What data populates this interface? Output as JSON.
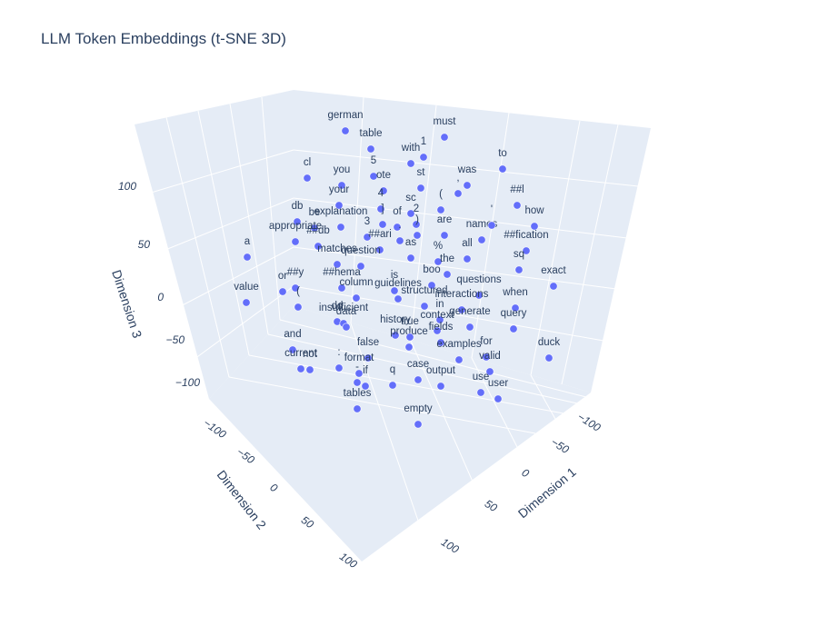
{
  "chart_data": {
    "type": "scatter3d",
    "title": "LLM Token Embeddings (t-SNE 3D)",
    "xlabel": "Dimension 1",
    "ylabel": "Dimension 2",
    "zlabel": "Dimension 3",
    "x_ticks": [
      "−100",
      "−50",
      "0",
      "50",
      "100"
    ],
    "y_ticks": [
      "−100",
      "−50",
      "0",
      "50",
      "100"
    ],
    "z_ticks": [
      "−100",
      "−50",
      "0",
      "50",
      "100"
    ],
    "marker_color": "#636efa",
    "background_color": "#e5ecf6",
    "points": [
      {
        "label": "german"
      },
      {
        "label": "table"
      },
      {
        "label": "must"
      },
      {
        "label": "1"
      },
      {
        "label": "with"
      },
      {
        "label": "5"
      },
      {
        "label": "cl"
      },
      {
        "label": "you"
      },
      {
        "label": "ote"
      },
      {
        "label": "st"
      },
      {
        "label": "was"
      },
      {
        "label": ","
      },
      {
        "label": "to"
      },
      {
        "label": "your"
      },
      {
        "label": "4"
      },
      {
        "label": "sc"
      },
      {
        "label": "2"
      },
      {
        "label": "("
      },
      {
        "label": "##l"
      },
      {
        "label": "db"
      },
      {
        "label": "be"
      },
      {
        "label": "explanation"
      },
      {
        "label": "of"
      },
      {
        "label": "]"
      },
      {
        "label": ")"
      },
      {
        "label": "are"
      },
      {
        "label": "names"
      },
      {
        "label": "'"
      },
      {
        "label": "how"
      },
      {
        "label": "appropriate"
      },
      {
        "label": "##db"
      },
      {
        "label": "."
      },
      {
        "label": "3"
      },
      {
        "label": "##fication"
      },
      {
        "label": "a"
      },
      {
        "label": "##ari"
      },
      {
        "label": "as"
      },
      {
        "label": "%"
      },
      {
        "label": "all"
      },
      {
        "label": "question"
      },
      {
        "label": "the"
      },
      {
        "label": "sq"
      },
      {
        "label": "matches"
      },
      {
        "label": "exact"
      },
      {
        "label": "or"
      },
      {
        "label": "##y"
      },
      {
        "label": "##hema"
      },
      {
        "label": "is"
      },
      {
        "label": "boo"
      },
      {
        "label": "value"
      },
      {
        "label": "column"
      },
      {
        "label": "guidelines"
      },
      {
        "label": "questions"
      },
      {
        "label": "("
      },
      {
        "label": "structured"
      },
      {
        "label": "interactions"
      },
      {
        "label": "when"
      },
      {
        "label": "dd"
      },
      {
        "label": "in"
      },
      {
        "label": "insufficient"
      },
      {
        "label": "generate"
      },
      {
        "label": "query"
      },
      {
        "label": "data"
      },
      {
        "label": "history"
      },
      {
        "label": "context"
      },
      {
        "label": "produce"
      },
      {
        "label": "fields"
      },
      {
        "label": "true"
      },
      {
        "label": "and"
      },
      {
        "label": "examples"
      },
      {
        "label": "for"
      },
      {
        "label": "duck"
      },
      {
        "label": "false"
      },
      {
        "label": ":"
      },
      {
        "label": "current"
      },
      {
        "label": "not"
      },
      {
        "label": "format"
      },
      {
        "label": "valid"
      },
      {
        "label": "case"
      },
      {
        "label": "-"
      },
      {
        "label": "if"
      },
      {
        "label": "output"
      },
      {
        "label": "q"
      },
      {
        "label": "use"
      },
      {
        "label": "user"
      },
      {
        "label": "tables"
      },
      {
        "label": "empty"
      }
    ]
  }
}
